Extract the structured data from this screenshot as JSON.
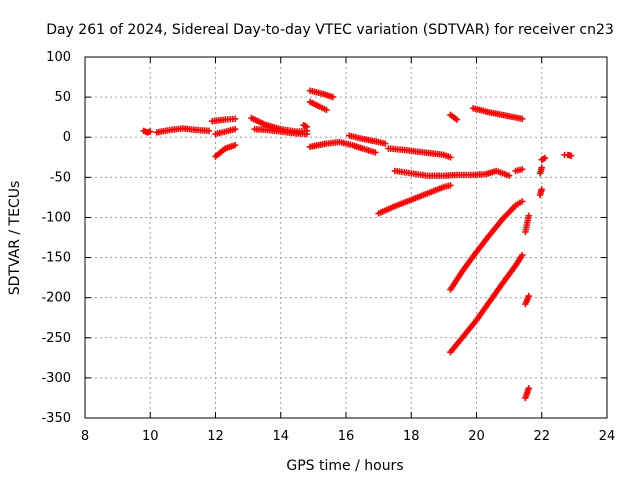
{
  "chart_data": {
    "type": "scatter",
    "title": "Day 261 of 2024, Sidereal Day-to-day VTEC variation (SDTVAR) for receiver cn23",
    "xlabel": "GPS time / hours",
    "ylabel": "SDTVAR / TECUs",
    "xlim": [
      8,
      24
    ],
    "ylim": [
      -350,
      100
    ],
    "x_ticks": [
      8,
      10,
      12,
      14,
      16,
      18,
      20,
      22,
      24
    ],
    "y_ticks": [
      100,
      50,
      0,
      -50,
      -100,
      -150,
      -200,
      -250,
      -300,
      -350
    ],
    "grid": true,
    "marker": "+",
    "series_color": "#ff0000",
    "segments": [
      [
        [
          9.8,
          8
        ],
        [
          9.9,
          6
        ],
        [
          10.0,
          7
        ]
      ],
      [
        [
          10.2,
          6
        ],
        [
          10.6,
          9
        ],
        [
          11.0,
          11
        ],
        [
          11.4,
          9
        ],
        [
          11.8,
          8
        ]
      ],
      [
        [
          11.9,
          20
        ],
        [
          12.3,
          22
        ],
        [
          12.6,
          23
        ]
      ],
      [
        [
          12.0,
          4
        ],
        [
          12.4,
          8
        ],
        [
          12.6,
          10
        ]
      ],
      [
        [
          12.0,
          -24
        ],
        [
          12.3,
          -14
        ],
        [
          12.6,
          -10
        ]
      ],
      [
        [
          13.1,
          24
        ],
        [
          13.5,
          16
        ],
        [
          14.0,
          10
        ],
        [
          14.5,
          7
        ],
        [
          14.8,
          8
        ]
      ],
      [
        [
          13.2,
          10
        ],
        [
          13.6,
          9
        ],
        [
          14.0,
          7
        ],
        [
          14.4,
          5
        ],
        [
          14.8,
          4
        ]
      ],
      [
        [
          14.7,
          15
        ],
        [
          14.8,
          13
        ]
      ],
      [
        [
          14.9,
          58
        ],
        [
          15.3,
          54
        ],
        [
          15.6,
          50
        ]
      ],
      [
        [
          14.9,
          44
        ],
        [
          15.2,
          38
        ],
        [
          15.4,
          34
        ]
      ],
      [
        [
          14.9,
          -12
        ],
        [
          15.4,
          -8
        ],
        [
          15.8,
          -6
        ],
        [
          16.2,
          -10
        ],
        [
          16.5,
          -14
        ],
        [
          16.9,
          -19
        ]
      ],
      [
        [
          16.1,
          2
        ],
        [
          16.5,
          -2
        ],
        [
          17.0,
          -6
        ],
        [
          17.2,
          -8
        ]
      ],
      [
        [
          17.3,
          -14
        ],
        [
          17.8,
          -16
        ],
        [
          18.2,
          -18
        ],
        [
          18.6,
          -20
        ],
        [
          19.0,
          -22
        ],
        [
          19.2,
          -25
        ]
      ],
      [
        [
          17.5,
          -42
        ],
        [
          18.0,
          -45
        ],
        [
          18.5,
          -48
        ],
        [
          19.0,
          -48
        ],
        [
          19.4,
          -47
        ],
        [
          19.9,
          -47
        ],
        [
          20.3,
          -46
        ],
        [
          20.6,
          -42
        ],
        [
          21.0,
          -48
        ]
      ],
      [
        [
          21.2,
          -42
        ],
        [
          21.4,
          -40
        ]
      ],
      [
        [
          17.0,
          -95
        ],
        [
          17.5,
          -86
        ],
        [
          18.0,
          -78
        ],
        [
          18.5,
          -70
        ],
        [
          19.0,
          -62
        ],
        [
          19.2,
          -60
        ]
      ],
      [
        [
          19.2,
          28
        ],
        [
          19.4,
          22
        ]
      ],
      [
        [
          19.9,
          36
        ],
        [
          20.4,
          31
        ],
        [
          20.9,
          27
        ],
        [
          21.4,
          23
        ]
      ],
      [
        [
          19.2,
          -190
        ],
        [
          19.6,
          -165
        ],
        [
          20.0,
          -143
        ],
        [
          20.4,
          -122
        ],
        [
          20.8,
          -102
        ],
        [
          21.2,
          -85
        ],
        [
          21.4,
          -80
        ]
      ],
      [
        [
          19.2,
          -268
        ],
        [
          19.6,
          -248
        ],
        [
          20.0,
          -228
        ],
        [
          20.4,
          -205
        ],
        [
          20.8,
          -182
        ],
        [
          21.2,
          -160
        ],
        [
          21.4,
          -147
        ]
      ],
      [
        [
          21.5,
          -118
        ],
        [
          21.6,
          -98
        ]
      ],
      [
        [
          21.5,
          -208
        ],
        [
          21.6,
          -198
        ]
      ],
      [
        [
          21.5,
          -325
        ],
        [
          21.6,
          -313
        ]
      ],
      [
        [
          21.95,
          -72
        ],
        [
          22.0,
          -65
        ]
      ],
      [
        [
          21.95,
          -45
        ],
        [
          22.0,
          -38
        ]
      ],
      [
        [
          22.0,
          -28
        ],
        [
          22.1,
          -26
        ]
      ],
      [
        [
          22.7,
          -22
        ],
        [
          22.8,
          -22
        ],
        [
          22.9,
          -23
        ]
      ]
    ]
  }
}
